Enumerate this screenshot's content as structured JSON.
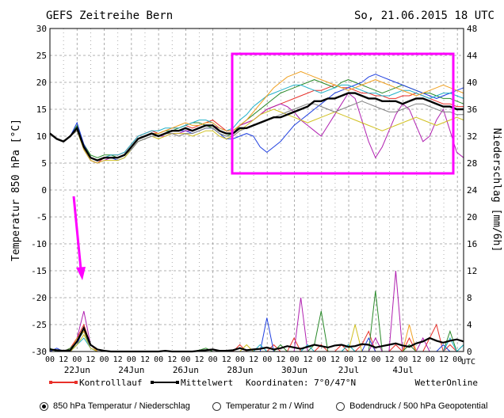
{
  "chart_data": {
    "type": "line",
    "title": "GEFS Zeitreihe Bern",
    "run_label": "So, 21.06.2015 18 UTC",
    "ylabel_left": "Temperatur 850 hPa [°C]",
    "ylabel_right": "Niederschlag [mm/6h]",
    "ylim_left": [
      -30,
      30
    ],
    "ylim_right": [
      0,
      48
    ],
    "yticks_left": [
      30,
      25,
      20,
      15,
      10,
      5,
      0,
      -5,
      -10,
      -15,
      -20,
      -25,
      -30
    ],
    "yticks_right": [
      48,
      44,
      40,
      36,
      32,
      28,
      24,
      20,
      16,
      12,
      8,
      4,
      0
    ],
    "x_hours_labels": [
      "00",
      "12",
      "00",
      "12",
      "00",
      "12",
      "00",
      "12",
      "00",
      "12",
      "00",
      "12",
      "00",
      "12",
      "00",
      "12",
      "00",
      "12",
      "00",
      "12",
      "00",
      "12",
      "00",
      "12",
      "00",
      "12",
      "00",
      "12",
      "00",
      "12",
      "00"
    ],
    "x_date_labels": [
      "22Jun",
      "24Jun",
      "26Jun",
      "28Jun",
      "30Jun",
      "2Jul",
      "4Jul"
    ],
    "utc_label": "UTC",
    "x_steps": 62,
    "temperature_mean": [
      10.5,
      9.5,
      9.0,
      10.0,
      11.5,
      8.0,
      6.0,
      5.5,
      6.0,
      6.0,
      6.0,
      6.5,
      8.0,
      9.5,
      10.0,
      10.5,
      10.0,
      10.5,
      11.0,
      11.0,
      11.5,
      11.0,
      11.5,
      12.0,
      12.0,
      11.0,
      10.5,
      10.5,
      11.5,
      11.5,
      12.0,
      12.5,
      13.0,
      13.5,
      13.5,
      14.0,
      14.5,
      15.0,
      15.5,
      16.5,
      16.5,
      17.0,
      17.0,
      17.5,
      18.0,
      18.0,
      17.5,
      17.0,
      17.0,
      16.5,
      16.5,
      16.5,
      16.0,
      16.5,
      17.0,
      17.0,
      16.5,
      16.0,
      15.5,
      15.5,
      15.0,
      15.0
    ],
    "temperature_members": [
      {
        "color": "#e8302a",
        "values": [
          10.5,
          9.5,
          9.0,
          10.0,
          11.5,
          7.5,
          5.5,
          5.0,
          6.0,
          6.5,
          6.5,
          7.0,
          8.5,
          10.0,
          10.5,
          11.0,
          10.5,
          11.0,
          11.5,
          11.5,
          12.0,
          11.5,
          12.0,
          12.5,
          13.0,
          12.0,
          11.0,
          11.0,
          12.0,
          12.5,
          13.0,
          14.0,
          15.0,
          15.5,
          16.0,
          16.5,
          17.0,
          17.5,
          18.0,
          18.5,
          18.5,
          19.0,
          19.5,
          19.0,
          19.0,
          18.5,
          18.0,
          18.0,
          17.5,
          17.5,
          17.0,
          17.0,
          17.5,
          17.5,
          18.0,
          17.5,
          17.0,
          16.5,
          16.0,
          16.0,
          15.5,
          15.5
        ]
      },
      {
        "color": "#2a8a2a",
        "values": [
          10.5,
          9.5,
          9.0,
          10.0,
          12.0,
          8.5,
          6.5,
          6.0,
          6.5,
          6.5,
          6.0,
          6.5,
          8.0,
          9.5,
          10.0,
          10.5,
          10.5,
          11.0,
          11.0,
          11.5,
          12.0,
          12.5,
          12.5,
          12.0,
          11.5,
          10.5,
          10.0,
          10.5,
          12.0,
          13.0,
          14.0,
          15.0,
          16.0,
          17.0,
          18.0,
          18.5,
          19.0,
          19.5,
          20.0,
          20.5,
          20.0,
          19.5,
          19.0,
          20.0,
          20.5,
          20.0,
          19.5,
          19.0,
          18.5,
          18.0,
          18.5,
          19.0,
          19.5,
          19.0,
          18.5,
          18.0,
          18.0,
          17.5,
          17.0,
          17.0,
          16.5,
          16.0
        ]
      },
      {
        "color": "#2040e0",
        "values": [
          10.5,
          9.5,
          9.0,
          10.0,
          12.5,
          8.5,
          6.0,
          5.5,
          6.0,
          6.0,
          5.5,
          6.0,
          7.5,
          9.0,
          9.5,
          10.0,
          10.0,
          10.5,
          11.0,
          11.0,
          11.0,
          10.5,
          11.0,
          11.5,
          11.5,
          10.5,
          9.5,
          9.5,
          10.0,
          10.5,
          10.0,
          8.0,
          7.0,
          8.0,
          9.0,
          10.5,
          12.0,
          13.0,
          14.0,
          15.0,
          16.0,
          17.0,
          18.0,
          18.5,
          19.0,
          19.5,
          20.0,
          21.0,
          21.5,
          21.0,
          20.5,
          20.0,
          19.5,
          19.0,
          18.5,
          18.0,
          17.5,
          17.0,
          17.5,
          18.0,
          18.5,
          19.0
        ]
      },
      {
        "color": "#b020b0",
        "values": [
          10.5,
          9.5,
          9.0,
          10.0,
          11.5,
          7.5,
          5.5,
          5.0,
          5.5,
          6.0,
          6.0,
          6.5,
          8.0,
          9.5,
          10.0,
          10.5,
          10.0,
          10.0,
          10.5,
          10.5,
          11.0,
          11.0,
          11.5,
          12.0,
          12.0,
          11.5,
          11.0,
          11.0,
          12.0,
          12.5,
          13.0,
          14.0,
          15.0,
          15.5,
          16.0,
          15.5,
          14.5,
          13.0,
          12.0,
          11.0,
          10.0,
          12.0,
          14.0,
          16.0,
          18.0,
          17.0,
          13.0,
          9.0,
          6.0,
          8.0,
          11.0,
          14.0,
          16.0,
          15.0,
          12.0,
          9.0,
          10.0,
          13.0,
          15.0,
          11.0,
          7.0,
          6.0
        ]
      },
      {
        "color": "#20b0c8",
        "values": [
          10.5,
          9.5,
          9.0,
          10.0,
          11.5,
          8.0,
          6.0,
          5.5,
          6.0,
          6.5,
          6.5,
          7.0,
          8.5,
          10.0,
          10.5,
          11.0,
          11.0,
          11.5,
          11.5,
          11.5,
          12.0,
          12.5,
          13.0,
          13.0,
          12.5,
          11.5,
          11.0,
          11.5,
          13.0,
          14.0,
          15.5,
          16.5,
          17.5,
          18.0,
          18.5,
          19.0,
          19.5,
          19.5,
          19.0,
          18.5,
          18.0,
          18.5,
          19.0,
          19.5,
          19.5,
          19.0,
          18.5,
          18.0,
          18.0,
          17.5,
          17.5,
          18.0,
          18.5,
          18.5,
          18.0,
          17.5,
          17.0,
          17.5,
          18.0,
          18.0,
          17.5,
          17.0
        ]
      },
      {
        "color": "#d0c020",
        "values": [
          10.5,
          9.5,
          9.0,
          10.0,
          11.0,
          7.5,
          5.5,
          5.0,
          5.5,
          5.5,
          5.5,
          6.0,
          7.5,
          9.0,
          9.5,
          10.0,
          9.5,
          10.0,
          10.5,
          10.5,
          10.5,
          10.0,
          10.5,
          11.0,
          11.0,
          10.0,
          9.5,
          10.0,
          11.0,
          12.0,
          13.0,
          14.0,
          14.5,
          15.0,
          14.5,
          14.0,
          13.5,
          13.0,
          12.5,
          13.0,
          13.5,
          14.0,
          14.5,
          14.0,
          13.5,
          13.0,
          12.5,
          12.0,
          11.5,
          11.0,
          11.5,
          12.0,
          12.5,
          13.0,
          13.5,
          13.0,
          12.5,
          12.0,
          12.5,
          13.0,
          13.5,
          13.0
        ]
      },
      {
        "color": "#f0a020",
        "values": [
          10.5,
          9.5,
          9.0,
          10.0,
          11.5,
          8.0,
          6.0,
          5.5,
          6.0,
          6.0,
          6.0,
          6.5,
          8.0,
          9.5,
          10.0,
          10.5,
          10.5,
          11.0,
          11.5,
          12.0,
          12.5,
          12.0,
          12.0,
          12.5,
          12.5,
          11.5,
          11.0,
          11.0,
          12.0,
          13.0,
          14.5,
          16.0,
          17.5,
          19.0,
          20.0,
          21.0,
          21.5,
          22.0,
          21.5,
          21.0,
          20.5,
          20.0,
          19.5,
          19.0,
          18.5,
          19.0,
          19.5,
          20.0,
          20.5,
          20.0,
          19.5,
          19.0,
          18.5,
          18.0,
          17.5,
          18.0,
          18.5,
          19.0,
          19.5,
          19.0,
          18.5,
          18.0
        ]
      },
      {
        "color": "#808080",
        "values": [
          10.5,
          9.5,
          9.0,
          10.0,
          11.0,
          8.0,
          6.0,
          5.5,
          6.0,
          6.0,
          6.0,
          6.5,
          7.5,
          9.0,
          9.5,
          10.0,
          10.0,
          10.5,
          10.5,
          10.0,
          10.5,
          10.5,
          11.0,
          11.5,
          11.5,
          10.5,
          10.0,
          10.0,
          11.0,
          11.5,
          12.0,
          12.5,
          13.0,
          13.5,
          14.0,
          14.5,
          15.0,
          15.5,
          16.0,
          16.0,
          15.5,
          15.0,
          14.5,
          15.0,
          15.5,
          16.0,
          16.5,
          16.0,
          15.5,
          15.0,
          14.5,
          14.5,
          15.0,
          15.5,
          16.0,
          16.0,
          15.5,
          15.0,
          14.5,
          14.5,
          14.0,
          14.0
        ]
      }
    ],
    "precip_mean": [
      0.3,
      0.2,
      0.1,
      0.2,
      1.5,
      3.5,
      1.0,
      0.3,
      0.1,
      0,
      0,
      0,
      0,
      0,
      0,
      0,
      0,
      0.1,
      0,
      0,
      0,
      0,
      0.1,
      0.2,
      0.3,
      0.1,
      0.1,
      0.2,
      0.5,
      0.2,
      0.3,
      0.4,
      0.6,
      0.3,
      0.5,
      0.8,
      0.6,
      0.4,
      0.7,
      1.0,
      0.8,
      0.6,
      0.9,
      1.0,
      0.7,
      0.8,
      1.1,
      1.0,
      0.6,
      0.8,
      1.0,
      1.2,
      0.9,
      0.7,
      1.2,
      1.5,
      2.0,
      1.6,
      1.3,
      1.6,
      1.8,
      1.5
    ],
    "precip_members": [
      {
        "color": "#e8302a",
        "values": [
          0,
          0,
          0,
          0.5,
          2,
          4,
          1,
          0,
          0,
          0,
          0,
          0,
          0,
          0,
          0,
          0,
          0,
          0,
          0,
          0,
          0,
          0,
          0,
          0,
          0,
          0,
          0,
          0,
          1,
          0,
          0,
          0,
          0,
          1,
          0,
          0,
          2,
          0,
          0,
          0,
          1,
          0,
          0,
          1,
          0,
          0,
          1,
          3,
          0,
          0,
          0,
          1,
          0,
          2,
          0,
          0,
          2,
          4,
          0,
          1,
          0,
          0
        ]
      },
      {
        "color": "#2a8a2a",
        "values": [
          0.5,
          0,
          0,
          0.5,
          1.5,
          3,
          0.5,
          0,
          0,
          0,
          0,
          0,
          0,
          0,
          0,
          0,
          0,
          0,
          0,
          0,
          0,
          0,
          0.2,
          0.5,
          0,
          0,
          0,
          0,
          0,
          0,
          0,
          0,
          0,
          0,
          1,
          0,
          0,
          0,
          0,
          1,
          6,
          0,
          0,
          0,
          1,
          0,
          0,
          0,
          9,
          0,
          0,
          0,
          0,
          1,
          0,
          0,
          0,
          0,
          0,
          3,
          0,
          1
        ]
      },
      {
        "color": "#2040e0",
        "values": [
          0,
          0.5,
          0,
          0,
          1,
          3.5,
          0.5,
          0,
          0,
          0,
          0,
          0,
          0,
          0,
          0,
          0,
          0,
          0,
          0,
          0,
          0,
          0,
          0,
          0,
          0,
          0,
          0,
          0,
          0,
          0,
          0,
          0,
          5,
          0,
          0,
          0,
          0,
          0,
          0,
          0,
          0,
          0,
          0,
          0,
          0,
          0,
          0,
          2,
          0,
          0,
          0,
          0,
          0,
          0,
          0,
          0,
          0,
          0,
          1,
          0,
          0,
          0
        ]
      },
      {
        "color": "#b020b0",
        "values": [
          0,
          0,
          0,
          0,
          2,
          6,
          1,
          0,
          0,
          0,
          0,
          0,
          0,
          0,
          0,
          0,
          0,
          0,
          0,
          0,
          0,
          0,
          0,
          0,
          0,
          0,
          0,
          0,
          0,
          0,
          0,
          0,
          0,
          0,
          0,
          0,
          0,
          8,
          0,
          0,
          0,
          0,
          0,
          0,
          0,
          0,
          0,
          0,
          2,
          0,
          0,
          12,
          0,
          0,
          0,
          2,
          0,
          0,
          0,
          0,
          0,
          0
        ]
      },
      {
        "color": "#20b0c8",
        "values": [
          0,
          0,
          0,
          0,
          1,
          2,
          0.5,
          0,
          0,
          0,
          0,
          0,
          0,
          0,
          0,
          0,
          0,
          0,
          0,
          0,
          0,
          0,
          0,
          0,
          0,
          0,
          0,
          0,
          0,
          0,
          0,
          1,
          0,
          0,
          0,
          0,
          0,
          0,
          1,
          0,
          0,
          0,
          0,
          0,
          1,
          0,
          0,
          0,
          0,
          0,
          0,
          0,
          0,
          0,
          0,
          0,
          0,
          0,
          0,
          2,
          0,
          1
        ]
      },
      {
        "color": "#d0c020",
        "values": [
          0,
          0,
          0,
          0,
          1,
          2.5,
          0.5,
          0,
          0,
          0,
          0,
          0,
          0,
          0,
          0,
          0,
          0,
          0,
          0,
          0,
          0,
          0,
          0,
          0,
          0,
          0,
          0,
          0,
          0,
          1,
          0,
          0,
          0,
          0,
          0,
          0,
          0,
          0,
          0,
          0,
          0,
          0,
          0,
          0,
          0,
          4,
          0,
          0,
          0,
          0,
          0,
          0,
          0,
          0,
          0,
          0,
          0,
          0,
          0,
          0,
          0,
          0
        ]
      },
      {
        "color": "#f0a020",
        "values": [
          0,
          0,
          0,
          0,
          2,
          3,
          1,
          0,
          0,
          0,
          0,
          0,
          0,
          0,
          0,
          0,
          0,
          0,
          0,
          0,
          0,
          0,
          0,
          0,
          0,
          0,
          0,
          0,
          0,
          0,
          0,
          0,
          0,
          0,
          0,
          0,
          0,
          0,
          0,
          0,
          0,
          0,
          0,
          0,
          0,
          0,
          0,
          0,
          0,
          0,
          0,
          0,
          0,
          4,
          0,
          0,
          0,
          0,
          0,
          0,
          0,
          0
        ]
      }
    ],
    "legend": [
      {
        "label": "Kontrolllauf",
        "color": "#e8302a"
      },
      {
        "label": "Mittelwert",
        "color": "#000000"
      }
    ],
    "coordinates_label": "Koordinaten: 7°0/47°N",
    "source_label": "WetterOnline",
    "annotations": {
      "box_color": "#ff00ff",
      "arrow_color": "#ff00ff"
    }
  },
  "options": [
    {
      "label": "850 hPa Temperatur / Niederschlag",
      "checked": true
    },
    {
      "label": "Temperatur 2 m / Wind",
      "checked": false
    },
    {
      "label": "Bodendruck / 500 hPa Geopotential",
      "checked": false
    }
  ]
}
